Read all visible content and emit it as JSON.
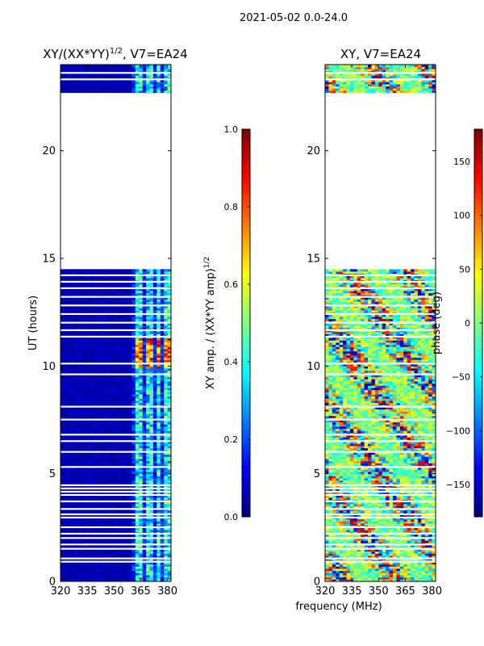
{
  "suptitle": "2021-05-02 0.0-24.0",
  "xlabel_shared": "frequency (MHz)",
  "colors": {
    "jet": [
      "#00007f",
      "#0000ff",
      "#007fff",
      "#00ffff",
      "#7fff7f",
      "#ffff00",
      "#ff7f00",
      "#ff0000",
      "#7f0000"
    ],
    "gap": "#ffffff",
    "frame": "#000000"
  },
  "chart_data": [
    {
      "type": "heatmap",
      "title_base": "XY/(XX*YY)",
      "title_exp": "1/2",
      "title_suffix": ", V7=EA24",
      "xlabel": "",
      "ylabel": "UT (hours)",
      "xlim": [
        320,
        382
      ],
      "ylim": [
        0,
        24
      ],
      "xticks": [
        320,
        335,
        350,
        365,
        380
      ],
      "yticks": [
        0,
        5,
        10,
        15,
        20
      ],
      "data_blocks_hours": [
        [
          0,
          14.5
        ],
        [
          22.7,
          24
        ]
      ],
      "flagged_rows_hours": [
        0.9,
        1.05,
        1.5,
        1.7,
        2.0,
        2.2,
        2.5,
        2.95,
        3.1,
        3.35,
        3.7,
        4.0,
        4.15,
        4.3,
        4.45,
        5.3,
        6.0,
        6.5,
        6.8,
        7.5,
        8.1,
        9.6,
        10.1,
        11.35,
        11.65,
        12.0,
        12.4,
        12.8,
        13.2,
        13.6,
        13.9,
        14.2,
        23.3,
        23.6
      ],
      "bright_channels_mhz": [
        [
          363,
          366
        ],
        [
          368,
          371
        ],
        [
          374,
          376
        ],
        [
          378,
          381
        ]
      ],
      "colorbar": {
        "label_base": "XY amp. / (XX*YY amp)",
        "label_exp": "1/2",
        "min": 0.0,
        "max": 1.0,
        "ticks": [
          "0.0",
          "0.2",
          "0.4",
          "0.6",
          "0.8",
          "1.0"
        ]
      }
    },
    {
      "type": "heatmap",
      "title": "XY, V7=EA24",
      "xlabel": "frequency (MHz)",
      "ylabel": "",
      "xlim": [
        320,
        382
      ],
      "ylim": [
        0,
        24
      ],
      "xticks": [
        320,
        335,
        350,
        365,
        380
      ],
      "yticks": [
        0,
        5,
        10,
        15,
        20
      ],
      "data_blocks_hours": [
        [
          0,
          14.5
        ],
        [
          22.7,
          24
        ]
      ],
      "flagged_rows_hours": [
        0.9,
        1.05,
        1.5,
        1.7,
        2.0,
        2.2,
        2.5,
        2.95,
        3.1,
        3.35,
        3.7,
        4.0,
        4.15,
        4.3,
        4.45,
        5.3,
        6.0,
        6.5,
        6.8,
        7.5,
        8.1,
        9.6,
        10.1,
        11.35,
        11.65,
        12.0,
        12.4,
        12.8,
        13.2,
        13.6,
        13.9,
        14.2,
        23.3,
        23.6
      ],
      "colorbar": {
        "label": "phase (deg)",
        "min": -180,
        "max": 180,
        "ticks": [
          "−150",
          "−100",
          "−50",
          "0",
          "50",
          "100",
          "150"
        ],
        "tick_values": [
          -150,
          -100,
          -50,
          0,
          50,
          100,
          150
        ]
      }
    }
  ]
}
